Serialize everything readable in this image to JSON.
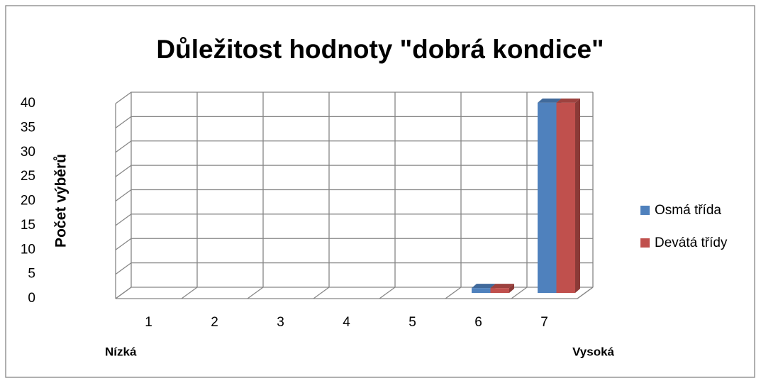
{
  "chart_data": {
    "type": "bar3d",
    "title": "Důležitost hodnoty \"dobrá kondice\"",
    "y_label": "Počet výběrů",
    "x_low_label": "Nízká",
    "x_high_label": "Vysoká",
    "categories": [
      "1",
      "2",
      "3",
      "4",
      "5",
      "6",
      "7"
    ],
    "series": [
      {
        "name": "Osmá třída",
        "color": "#4f81bd",
        "values": [
          0,
          0,
          0,
          0,
          0,
          1,
          39
        ]
      },
      {
        "name": "Devátá třídy",
        "color": "#c0504d",
        "values": [
          0,
          0,
          0,
          0,
          0,
          1,
          39
        ]
      }
    ],
    "ylim": [
      0,
      40
    ],
    "yticks": [
      0,
      5,
      10,
      15,
      20,
      25,
      30,
      35,
      40
    ],
    "grid": true,
    "legend": "right"
  }
}
